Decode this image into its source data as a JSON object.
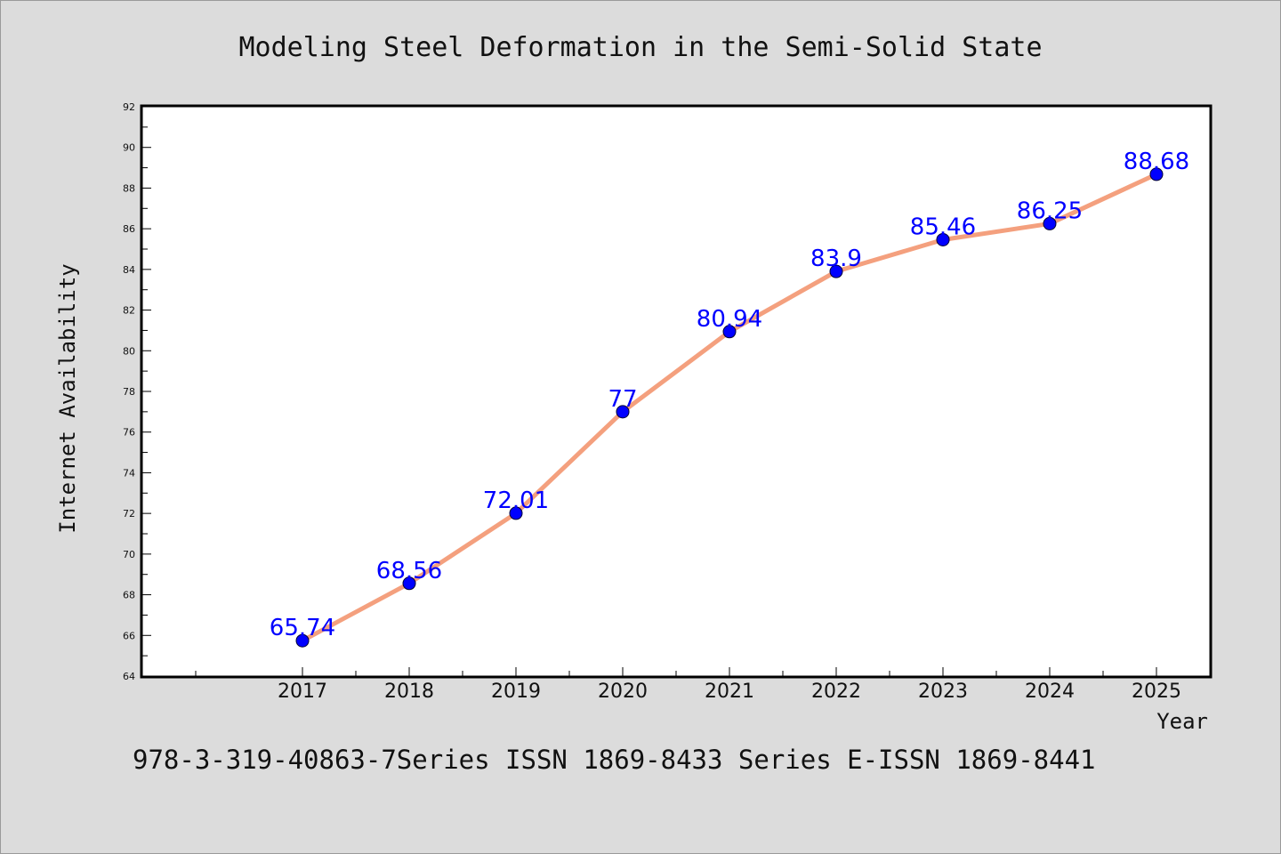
{
  "chart_data": {
    "type": "line",
    "title": "Modeling Steel Deformation in the Semi-Solid State",
    "xlabel": "Year",
    "ylabel": "Internet Availability",
    "categories": [
      "2017",
      "2018",
      "2019",
      "2020",
      "2021",
      "2022",
      "2023",
      "2024",
      "2025"
    ],
    "series": [
      {
        "values": [
          65.74,
          68.56,
          72.01,
          77,
          80.94,
          83.9,
          85.46,
          86.25,
          88.68
        ]
      }
    ],
    "data_labels": [
      "65.74",
      "68.56",
      "72.01",
      "77",
      "80.94",
      "83.9",
      "85.46",
      "86.25",
      "88.68"
    ],
    "yticks": [
      "64",
      "66",
      "68",
      "70",
      "72",
      "74",
      "76",
      "78",
      "80",
      "82",
      "84",
      "86",
      "88",
      "90",
      "92"
    ],
    "ylim": [
      64,
      92
    ],
    "grid": false,
    "colors": {
      "line": "#f4a07e",
      "marker": "#0000ff",
      "label": "#0000ff"
    }
  },
  "footer": "978-3-319-40863-7Series ISSN 1869-8433 Series E-ISSN 1869-8441"
}
